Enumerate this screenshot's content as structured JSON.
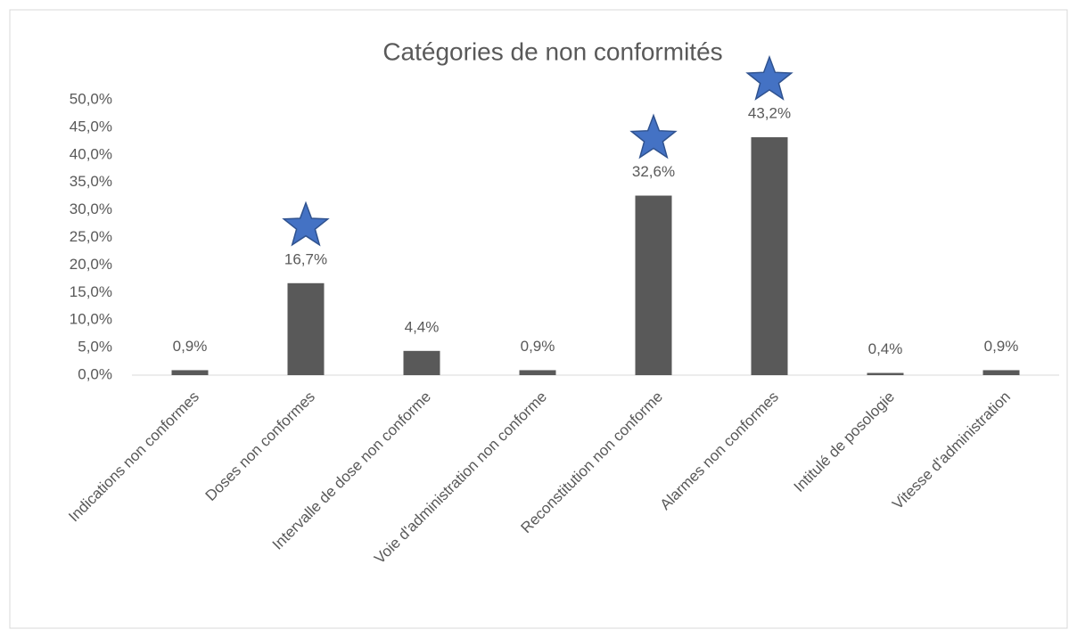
{
  "chart_data": {
    "type": "bar",
    "title": "Catégories de non conformités",
    "categories": [
      "Indications non conformes",
      "Doses non conformes",
      "Intervalle de dose non conforme",
      "Voie d'administration non conforme",
      "Reconstitution non conforme",
      "Alarmes non conformes",
      "Intitulé de posologie",
      "Vitesse d'administration"
    ],
    "values": [
      0.9,
      16.7,
      4.4,
      0.9,
      32.6,
      43.2,
      0.4,
      0.9
    ],
    "value_labels": [
      "0,9%",
      "16,7%",
      "4,4%",
      "0,9%",
      "32,6%",
      "43,2%",
      "0,4%",
      "0,9%"
    ],
    "color": "#595959",
    "highlighted": [
      1,
      4,
      5
    ],
    "ylim": [
      0,
      50
    ],
    "yticks": [
      {
        "value": 0,
        "label": "0,0%"
      },
      {
        "value": 5,
        "label": "5,0%"
      },
      {
        "value": 10,
        "label": "10,0%"
      },
      {
        "value": 15,
        "label": "15,0%"
      },
      {
        "value": 20,
        "label": "20,0%"
      },
      {
        "value": 25,
        "label": "25,0%"
      },
      {
        "value": 30,
        "label": "30,0%"
      },
      {
        "value": 35,
        "label": "35,0%"
      },
      {
        "value": 40,
        "label": "40,0%"
      },
      {
        "value": 45,
        "label": "45,0%"
      },
      {
        "value": 50,
        "label": "50,0%"
      }
    ],
    "grid": false
  }
}
